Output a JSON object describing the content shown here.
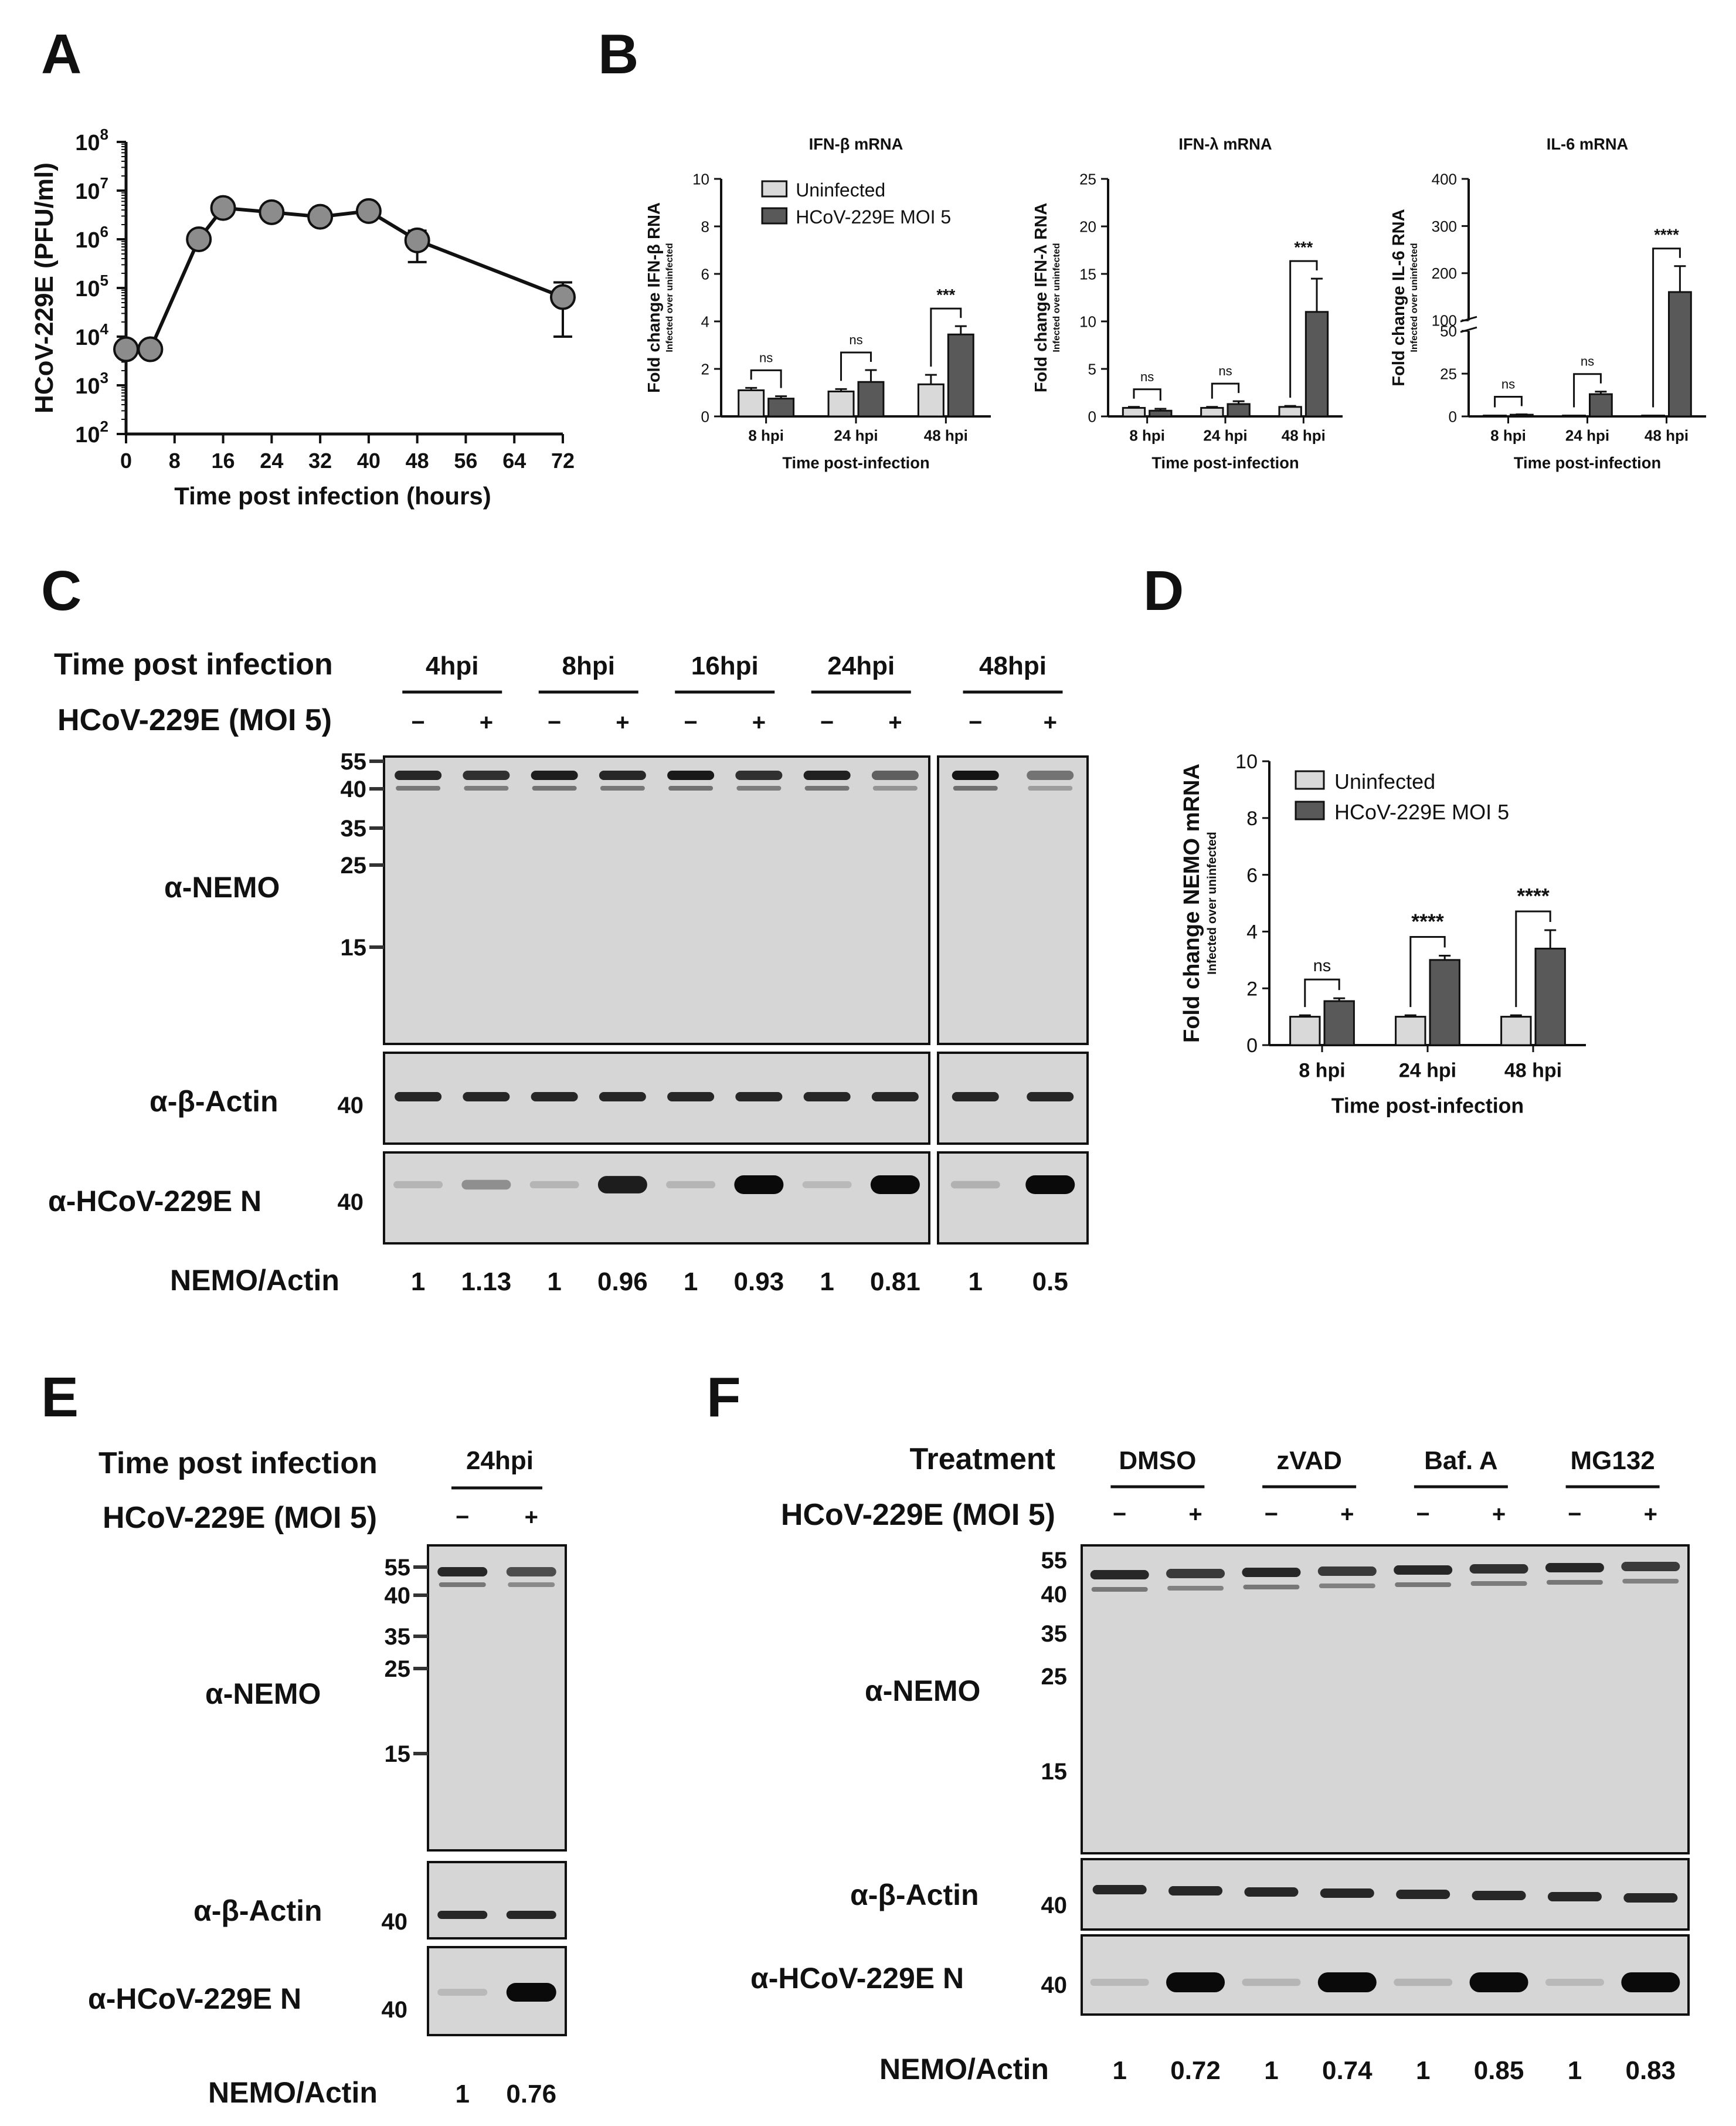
{
  "panels": {
    "A": {
      "letter": "A"
    },
    "B": {
      "letter": "B"
    },
    "C": {
      "letter": "C"
    },
    "D": {
      "letter": "D"
    },
    "E": {
      "letter": "E"
    },
    "F": {
      "letter": "F"
    }
  },
  "chart_data": [
    {
      "id": "A",
      "type": "line",
      "title": "",
      "xlabel": "Time post infection (hours)",
      "ylabel": "HCoV-229E (PFU/ml)",
      "yscale": "log",
      "ylim": [
        100,
        100000000
      ],
      "ytick_labels": [
        "10",
        "10",
        "10",
        "10",
        "10",
        "10",
        "10"
      ],
      "ytick_exponents": [
        "2",
        "3",
        "4",
        "5",
        "6",
        "7",
        "8"
      ],
      "xlim": [
        0,
        72
      ],
      "xticks": [
        "0",
        "8",
        "16",
        "24",
        "32",
        "40",
        "48",
        "56",
        "64",
        "72"
      ],
      "x": [
        0,
        4,
        12,
        16,
        24,
        32,
        40,
        48,
        72
      ],
      "y": [
        5500,
        5500,
        1000000,
        4400000,
        3600000,
        2900000,
        3800000,
        950000,
        65000
      ],
      "err_low": [
        5500,
        5500,
        1000000,
        4400000,
        3600000,
        2900000,
        3800000,
        340000,
        10000
      ],
      "err_high": [
        5500,
        5500,
        1000000,
        4400000,
        3600000,
        2900000,
        3800000,
        1500000,
        130000
      ]
    },
    {
      "id": "B1",
      "type": "bar",
      "title": "IFN-β mRNA",
      "ylabel": "Fold change IFN-β RNA",
      "ylabel_sub": "Infected over uninfected",
      "xlabel": "Time post-infection",
      "categories": [
        "8 hpi",
        "24 hpi",
        "48 hpi"
      ],
      "ylim": [
        0,
        10
      ],
      "yticks": [
        "0",
        "2",
        "4",
        "6",
        "8",
        "10"
      ],
      "series": [
        {
          "name": "Uninfected",
          "color": "#d9d9d9",
          "values": [
            1.1,
            1.05,
            1.35
          ],
          "errors": [
            0.1,
            0.1,
            0.4
          ]
        },
        {
          "name": "HCoV-229E MOI 5",
          "color": "#595959",
          "values": [
            0.75,
            1.45,
            3.45
          ],
          "errors": [
            0.1,
            0.5,
            0.35
          ]
        }
      ],
      "significance": [
        "ns",
        "ns",
        "***"
      ]
    },
    {
      "id": "B2",
      "type": "bar",
      "title": "IFN-λ mRNA",
      "ylabel": "Fold change IFN-λ RNA",
      "ylabel_sub": "Infected over uninfected",
      "xlabel": "Time post-infection",
      "categories": [
        "8 hpi",
        "24 hpi",
        "48 hpi"
      ],
      "ylim": [
        0,
        25
      ],
      "yticks": [
        "0",
        "5",
        "10",
        "15",
        "20",
        "25"
      ],
      "series": [
        {
          "name": "Uninfected",
          "color": "#d9d9d9",
          "values": [
            0.9,
            0.9,
            1.0
          ],
          "errors": [
            0.1,
            0.1,
            0.1
          ]
        },
        {
          "name": "HCoV-229E MOI 5",
          "color": "#595959",
          "values": [
            0.6,
            1.3,
            11.0
          ],
          "errors": [
            0.2,
            0.3,
            3.5
          ]
        }
      ],
      "significance": [
        "ns",
        "ns",
        "***"
      ]
    },
    {
      "id": "B3",
      "type": "bar",
      "title": "IL-6 mRNA",
      "ylabel": "Fold change IL-6 RNA",
      "ylabel_sub": "Infected over uninfected",
      "xlabel": "Time post-infection",
      "categories": [
        "8 hpi",
        "24 hpi",
        "48 hpi"
      ],
      "yaxis_break": [
        50,
        100
      ],
      "ylim": [
        0,
        400
      ],
      "yticks": [
        "0",
        "25",
        "50",
        "100",
        "200",
        "300",
        "400"
      ],
      "series": [
        {
          "name": "Uninfected",
          "color": "#d9d9d9",
          "values": [
            0.5,
            0.5,
            0.5
          ],
          "errors": [
            0,
            0,
            0
          ]
        },
        {
          "name": "HCoV-229E MOI 5",
          "color": "#595959",
          "values": [
            1.0,
            13.0,
            160.0
          ],
          "errors": [
            0.2,
            1.5,
            55
          ]
        }
      ],
      "significance": [
        "ns",
        "ns",
        "****"
      ]
    },
    {
      "id": "D",
      "type": "bar",
      "title": "",
      "ylabel": "Fold change NEMO mRNA",
      "ylabel_sub": "Infected over uninfected",
      "xlabel": "Time post-infection",
      "categories": [
        "8 hpi",
        "24 hpi",
        "48 hpi"
      ],
      "ylim": [
        0,
        10
      ],
      "yticks": [
        "0",
        "2",
        "4",
        "6",
        "8",
        "10"
      ],
      "series": [
        {
          "name": "Uninfected",
          "color": "#d9d9d9",
          "values": [
            1.0,
            1.0,
            1.0
          ],
          "errors": [
            0.05,
            0.05,
            0.05
          ]
        },
        {
          "name": "HCoV-229E MOI 5",
          "color": "#595959",
          "values": [
            1.55,
            3.0,
            3.4
          ],
          "errors": [
            0.1,
            0.15,
            0.65
          ]
        }
      ],
      "significance": [
        "ns",
        "****",
        "****"
      ]
    }
  ],
  "blot_C": {
    "time_label": "Time post infection",
    "virus_label": "HCoV-229E (MOI 5)",
    "timepoints": [
      "4hpi",
      "8hpi",
      "16hpi",
      "24hpi",
      "48hpi"
    ],
    "signs": [
      "−",
      "+",
      "−",
      "+",
      "−",
      "+",
      "−",
      "+",
      "−",
      "+"
    ],
    "markers_nemo": [
      "55",
      "40",
      "35",
      "25",
      "15"
    ],
    "marker_40": "40",
    "row_labels": [
      "α-NEMO",
      "α-β-Actin",
      "α-HCoV-229E N"
    ],
    "ratio_label": "NEMO/Actin",
    "ratios": [
      "1",
      "1.13",
      "1",
      "0.96",
      "1",
      "0.93",
      "1",
      "0.81",
      "1",
      "0.5"
    ],
    "band_intensity": [
      0.85,
      0.8,
      0.9,
      0.85,
      0.92,
      0.8,
      0.88,
      0.55,
      0.95,
      0.45
    ],
    "n_intensity": [
      0.1,
      0.3,
      0.1,
      0.9,
      0.1,
      1.0,
      0.08,
      1.0,
      0.12,
      1.0
    ]
  },
  "blot_E": {
    "time_label": "Time post infection",
    "virus_label": "HCoV-229E (MOI 5)",
    "timepoint": "24hpi",
    "signs": [
      "−",
      "+"
    ],
    "markers_nemo": [
      "55",
      "40",
      "35",
      "25",
      "15"
    ],
    "marker_40": "40",
    "row_labels": [
      "α-NEMO",
      "α-β-Actin",
      "α-HCoV-229E N"
    ],
    "ratio_label": "NEMO/Actin",
    "ratios": [
      "1",
      "0.76"
    ],
    "band_intensity": [
      0.85,
      0.65
    ],
    "n_intensity": [
      0.08,
      1.0
    ]
  },
  "blot_F": {
    "treatment_label": "Treatment",
    "virus_label": "HCoV-229E (MOI 5)",
    "treatments": [
      "DMSO",
      "zVAD",
      "Baf. A",
      "MG132"
    ],
    "signs": [
      "−",
      "+",
      "−",
      "+",
      "−",
      "+",
      "−",
      "+"
    ],
    "markers_nemo": [
      "55",
      "40",
      "35",
      "25",
      "15"
    ],
    "marker_40": "40",
    "row_labels": [
      "α-NEMO",
      "α-β-Actin",
      "α-HCoV-229E N"
    ],
    "ratio_label": "NEMO/Actin",
    "ratios": [
      "1",
      "0.72",
      "1",
      "0.74",
      "1",
      "0.85",
      "1",
      "0.83"
    ],
    "band_intensity": [
      0.85,
      0.75,
      0.85,
      0.75,
      0.85,
      0.8,
      0.85,
      0.75
    ],
    "n_intensity": [
      0.08,
      1.0,
      0.1,
      1.0,
      0.1,
      1.0,
      0.08,
      1.0
    ]
  }
}
